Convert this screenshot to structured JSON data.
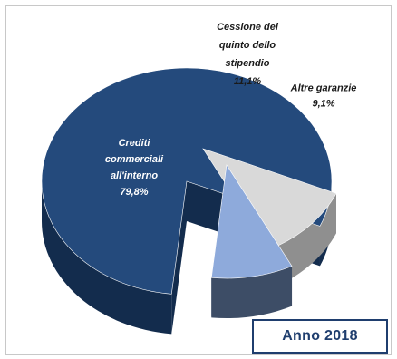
{
  "chart_data": {
    "type": "pie",
    "slices": [
      {
        "label_lines": [
          "Crediti",
          "commerciali",
          "all'interno",
          "79,8%"
        ],
        "value": 79.8,
        "color": "#244a7c",
        "side_color": "#132c4d"
      },
      {
        "label_lines": [
          "Cessione del",
          "quinto dello",
          "stipendio",
          "11,1%"
        ],
        "value": 11.1,
        "color": "#d9d9d9",
        "side_color": "#8f8f8f"
      },
      {
        "label_lines": [
          "Altre garanzie",
          "9,1%"
        ],
        "value": 9.1,
        "color": "#8eaadb",
        "side_color": "#3d4d66"
      }
    ],
    "legend_box": "Anno 2018",
    "title": ""
  }
}
